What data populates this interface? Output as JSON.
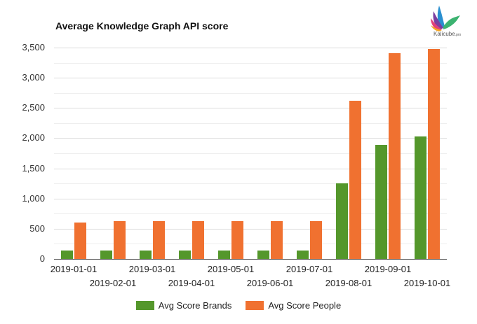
{
  "logo": {
    "name": "Kalicube",
    "suffix": ".pro"
  },
  "chart_data": {
    "type": "bar",
    "title": "Average Knowledge Graph API score",
    "xlabel": "",
    "ylabel": "",
    "ylim": [
      0,
      3500
    ],
    "yticks": [
      "0",
      "500",
      "1,000",
      "1,500",
      "2,000",
      "2,500",
      "3,000",
      "3,500"
    ],
    "grid": true,
    "legend_position": "bottom",
    "categories": [
      "2019-01-01",
      "2019-02-01",
      "2019-03-01",
      "2019-04-01",
      "2019-05-01",
      "2019-06-01",
      "2019-07-01",
      "2019-08-01",
      "2019-09-01",
      "2019-10-01"
    ],
    "series": [
      {
        "name": "Avg Score Brands",
        "color": "#54972b",
        "values": [
          140,
          140,
          140,
          140,
          140,
          140,
          140,
          1250,
          1890,
          2030
        ]
      },
      {
        "name": "Avg Score People",
        "color": "#f07130",
        "values": [
          600,
          630,
          630,
          630,
          630,
          630,
          630,
          2620,
          3410,
          3480
        ]
      }
    ]
  }
}
